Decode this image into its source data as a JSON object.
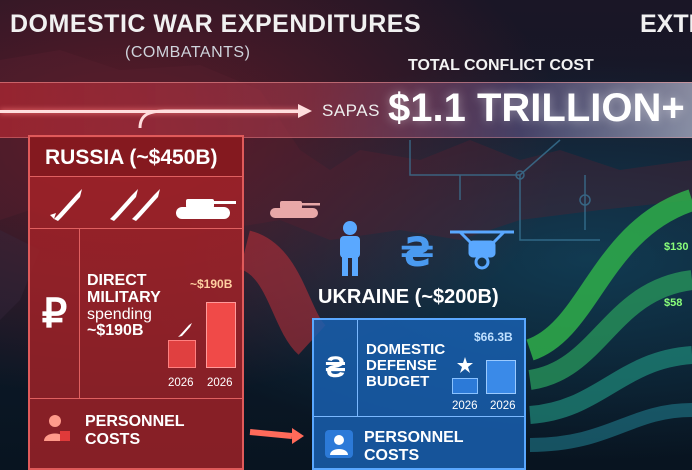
{
  "header": {
    "title": "DOMESTIC WAR EXPENDITURES",
    "subtitle": "(COMBATANTS)",
    "right_title": "EXTE"
  },
  "total": {
    "label": "TOTAL CONFLICT COST",
    "prefix": "SAPAS",
    "value": "$1.1 TRILLION+"
  },
  "russia": {
    "name": "RUSSIA (~$450B)",
    "currency_symbol": "₽",
    "direct_line1": "DIRECT",
    "direct_line2": "MILITARY",
    "direct_line3": "spending",
    "direct_line4": "~$190B",
    "bar_value": "~$190B",
    "years": [
      "2026",
      "2026"
    ],
    "personnel_line1": "PERSONNEL",
    "personnel_line2": "COSTS",
    "icons": [
      "missile-icon",
      "missile-icon",
      "missile-icon",
      "tank-icon"
    ],
    "bar_levels": [
      0.35,
      0.83
    ]
  },
  "ukraine": {
    "name": "UKRAINE (~$200B)",
    "currency_symbol": "₴",
    "budget_line1": "DOMESTIC",
    "budget_line2": "DEFENSE",
    "budget_line3": "BUDGET",
    "bar_value": "$66.3B",
    "years": [
      "2026",
      "2026"
    ],
    "personnel_line1": "PERSONNEL",
    "personnel_line2": "COSTS",
    "icons": [
      "soldier-icon",
      "hryvnia-icon",
      "drone-icon"
    ],
    "bar_levels": [
      0.4,
      0.85
    ]
  },
  "external": {
    "values": [
      "$130",
      "$58"
    ]
  },
  "colors": {
    "russia": "#b3262d",
    "ukraine": "#1f64b8",
    "external": "#3ecb5a"
  }
}
